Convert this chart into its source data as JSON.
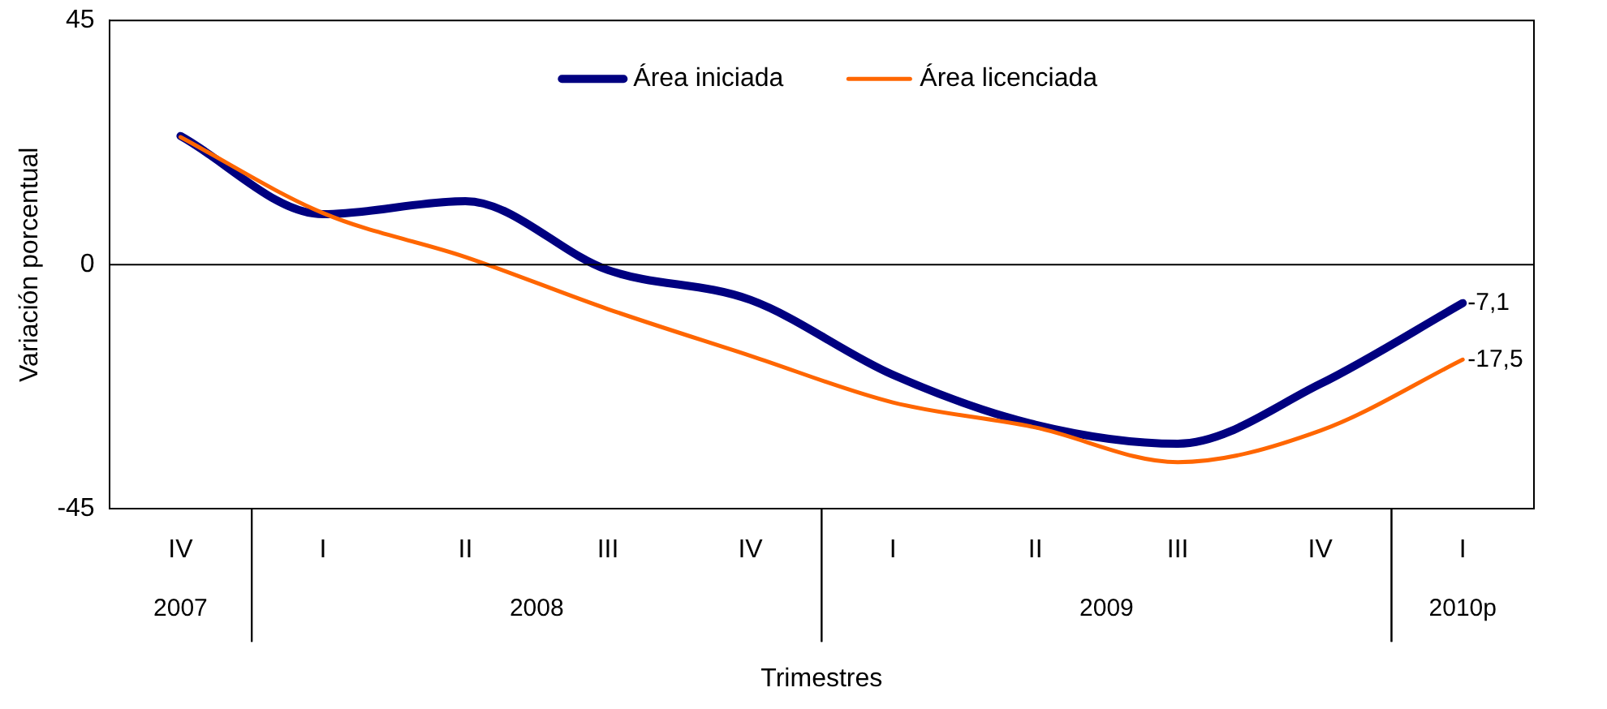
{
  "chart_data": {
    "type": "line",
    "xlabel": "Trimestres",
    "ylabel": "Variación porcentual",
    "categories": [
      "IV",
      "I",
      "II",
      "III",
      "IV",
      "I",
      "II",
      "III",
      "IV",
      "I"
    ],
    "annotations": [
      "2007",
      "2008",
      "2009",
      "2010p"
    ],
    "series": [
      {
        "name": "Área iniciada",
        "color": "#000080",
        "values": [
          23.7,
          9.3,
          11.7,
          -1,
          -6.5,
          -20.3,
          -29.5,
          -33,
          -22,
          -7.1
        ],
        "value_labels": [
          null,
          null,
          null,
          null,
          null,
          null,
          null,
          null,
          null,
          "-7,1"
        ]
      },
      {
        "name": "Área licenciada",
        "color": "#ff6600",
        "values": [
          23.5,
          9.5,
          1.4,
          -8.2,
          -16.8,
          -25.4,
          -30,
          -36.4,
          -30.6,
          -17.5
        ],
        "value_labels": [
          null,
          null,
          null,
          null,
          null,
          null,
          null,
          null,
          null,
          "-17,5"
        ]
      }
    ],
    "ylim": [
      -45,
      45
    ],
    "yticks": [
      -45,
      0,
      45
    ],
    "grid": false,
    "legend": "top",
    "marker": "none",
    "line_style": "solid",
    "ref_lines": [
      {
        "axis": "y",
        "value": 0
      }
    ]
  }
}
